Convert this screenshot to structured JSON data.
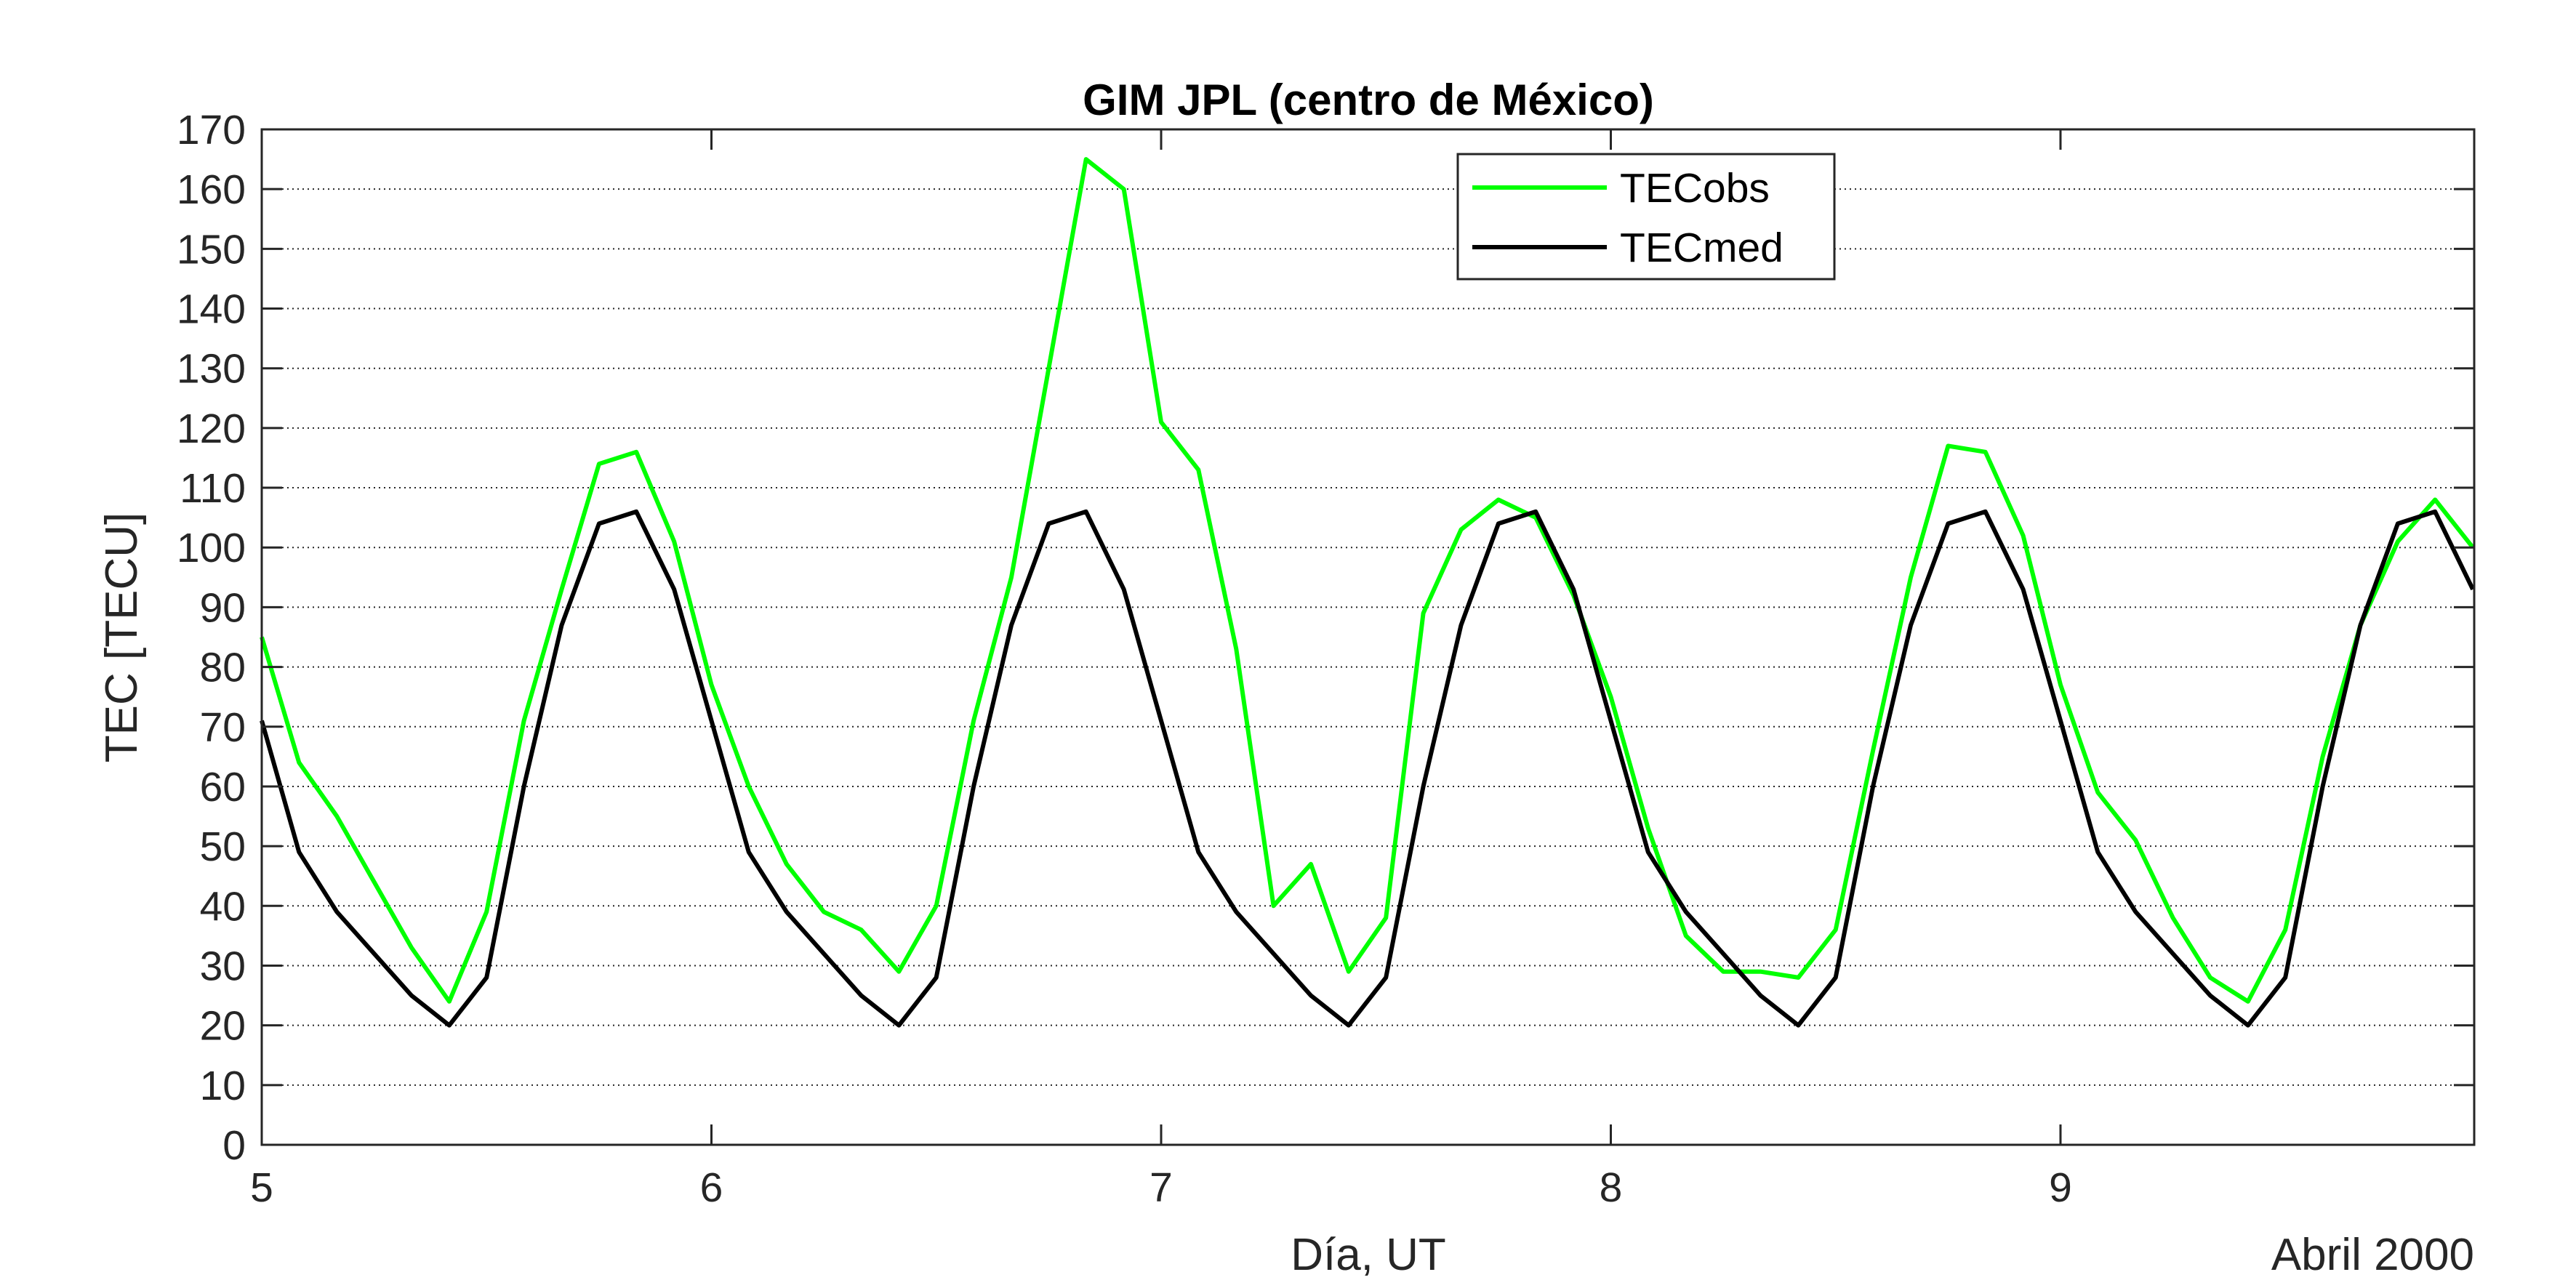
{
  "chart_data": {
    "type": "line",
    "title": "GIM JPL (centro de México)",
    "xlabel": "Día, UT",
    "ylabel": "TEC [TECU]",
    "corner_note": "Abril 2000",
    "xlim": [
      5,
      9.92
    ],
    "ylim": [
      0,
      170
    ],
    "x_ticks": [
      5,
      6,
      7,
      8,
      9
    ],
    "y_ticks": [
      0,
      10,
      20,
      30,
      40,
      50,
      60,
      70,
      80,
      90,
      100,
      110,
      120,
      130,
      140,
      150,
      160,
      170
    ],
    "grid": "horizontal dotted",
    "legend_position": "top, right of center",
    "series": [
      {
        "name": "TECobs",
        "color": "#00ff00",
        "x": [
          5,
          5.083,
          5.167,
          5.25,
          5.333,
          5.417,
          5.5,
          5.583,
          5.667,
          5.75,
          5.833,
          5.917,
          6,
          6.083,
          6.167,
          6.25,
          6.333,
          6.417,
          6.5,
          6.583,
          6.667,
          6.75,
          6.833,
          6.917,
          7,
          7.083,
          7.167,
          7.25,
          7.333,
          7.417,
          7.5,
          7.583,
          7.667,
          7.75,
          7.833,
          7.917,
          8,
          8.083,
          8.167,
          8.25,
          8.333,
          8.417,
          8.5,
          8.583,
          8.667,
          8.75,
          8.833,
          8.917,
          9,
          9.083,
          9.167,
          9.25,
          9.333,
          9.417,
          9.5,
          9.583,
          9.667,
          9.75,
          9.833,
          9.917
        ],
        "values": [
          85,
          64,
          55,
          44,
          33,
          24,
          39,
          71,
          93,
          114,
          116,
          101,
          77,
          60,
          47,
          39,
          36,
          29,
          40,
          71,
          95,
          130,
          165,
          160,
          121,
          113,
          83,
          40,
          47,
          29,
          38,
          89,
          103,
          108,
          105,
          92,
          75,
          53,
          35,
          29,
          29,
          28,
          36,
          66,
          95,
          117,
          116,
          102,
          77,
          59,
          51,
          38,
          28,
          24,
          36,
          65,
          87,
          101,
          108,
          100
        ]
      },
      {
        "name": "TECmed",
        "color": "#000000",
        "x": [
          5,
          5.083,
          5.167,
          5.25,
          5.333,
          5.417,
          5.5,
          5.583,
          5.667,
          5.75,
          5.833,
          5.917,
          6,
          6.083,
          6.167,
          6.25,
          6.333,
          6.417,
          6.5,
          6.583,
          6.667,
          6.75,
          6.833,
          6.917,
          7,
          7.083,
          7.167,
          7.25,
          7.333,
          7.417,
          7.5,
          7.583,
          7.667,
          7.75,
          7.833,
          7.917,
          8,
          8.083,
          8.167,
          8.25,
          8.333,
          8.417,
          8.5,
          8.583,
          8.667,
          8.75,
          8.833,
          8.917,
          9,
          9.083,
          9.167,
          9.25,
          9.333,
          9.417,
          9.5,
          9.583,
          9.667,
          9.75,
          9.833,
          9.917
        ],
        "values": [
          71,
          49,
          39,
          32,
          25,
          20,
          28,
          60,
          87,
          104,
          106,
          93,
          71,
          49,
          39,
          32,
          25,
          20,
          28,
          60,
          87,
          104,
          106,
          93,
          71,
          49,
          39,
          32,
          25,
          20,
          28,
          60,
          87,
          104,
          106,
          93,
          71,
          49,
          39,
          32,
          25,
          20,
          28,
          60,
          87,
          104,
          106,
          93,
          71,
          49,
          39,
          32,
          25,
          20,
          28,
          60,
          87,
          104,
          106,
          93
        ]
      }
    ]
  }
}
